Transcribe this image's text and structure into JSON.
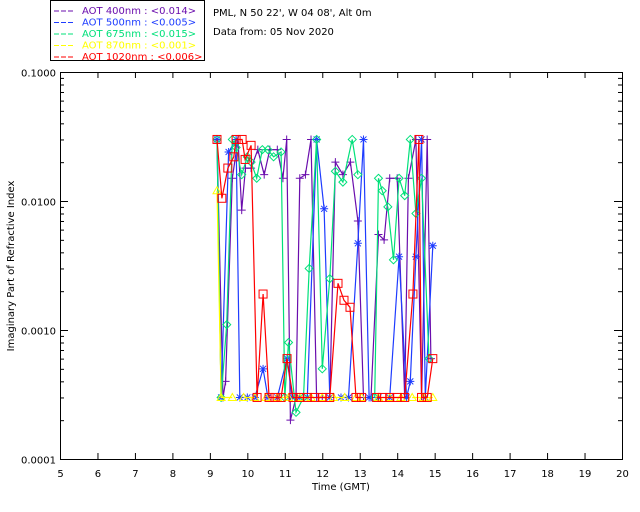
{
  "header": {
    "site": "PML, N 50 22', W 04 08', Alt 0m",
    "date": "Data from: 05 Nov 2020"
  },
  "chart_data": {
    "type": "line",
    "title": "",
    "xlabel": "Time (GMT)",
    "ylabel": "Imaginary Part of Refractive Index",
    "xlim": [
      5,
      20
    ],
    "ylim": [
      0.0001,
      0.1
    ],
    "yscale": "log",
    "xticks": [
      "5",
      "6",
      "7",
      "8",
      "9",
      "10",
      "11",
      "12",
      "13",
      "14",
      "15",
      "16",
      "17",
      "18",
      "19",
      "20"
    ],
    "yticks": [
      "0.1000",
      "0.0100",
      "0.0010",
      "0.0001"
    ],
    "legend_position": "top-left-outside",
    "series": [
      {
        "name": "AOT  400nm : <0.014>",
        "color": "#6a0dad",
        "marker": "plus",
        "points": [
          [
            9.19,
            0.03
          ],
          [
            9.35,
            0.0003
          ],
          [
            9.42,
            0.0004
          ],
          [
            9.6,
            0.015
          ],
          [
            9.75,
            0.03
          ],
          [
            9.85,
            0.0085
          ],
          [
            9.95,
            0.018
          ],
          [
            10.1,
            0.018
          ],
          [
            10.28,
            0.025
          ],
          [
            10.45,
            0.016
          ],
          [
            10.6,
            0.025
          ],
          [
            10.8,
            0.025
          ],
          [
            10.95,
            0.015
          ],
          [
            11.05,
            0.03
          ],
          [
            11.15,
            0.0002
          ],
          [
            11.3,
            0.0003
          ],
          [
            11.4,
            0.015
          ],
          [
            11.55,
            0.016
          ],
          [
            11.7,
            0.03
          ],
          [
            11.85,
            0.0003
          ],
          [
            12.0,
            0.0003
          ],
          [
            12.2,
            0.0003
          ],
          [
            12.35,
            0.02
          ],
          [
            12.55,
            0.016
          ],
          [
            12.75,
            0.02
          ],
          [
            12.95,
            0.007
          ],
          [
            13.1,
            0.0003
          ],
          [
            13.3,
            0.0003
          ],
          [
            13.5,
            0.0055
          ],
          [
            13.65,
            0.005
          ],
          [
            13.8,
            0.015
          ],
          [
            14.0,
            0.015
          ],
          [
            14.2,
            0.0003
          ],
          [
            14.3,
            0.015
          ],
          [
            14.5,
            0.03
          ],
          [
            14.65,
            0.0003
          ],
          [
            14.8,
            0.03
          ],
          [
            14.9,
            0.0006
          ]
        ]
      },
      {
        "name": "AOT  500nm : <0.005>",
        "color": "#1e3cff",
        "marker": "star",
        "points": [
          [
            9.19,
            0.03
          ],
          [
            9.3,
            0.0003
          ],
          [
            9.5,
            0.024
          ],
          [
            9.7,
            0.03
          ],
          [
            9.8,
            0.0003
          ],
          [
            10.0,
            0.0003
          ],
          [
            10.2,
            0.0003
          ],
          [
            10.42,
            0.0005
          ],
          [
            10.55,
            0.0003
          ],
          [
            10.8,
            0.0003
          ],
          [
            11.06,
            0.0006
          ],
          [
            11.2,
            0.0003
          ],
          [
            11.4,
            0.0003
          ],
          [
            11.6,
            0.0003
          ],
          [
            11.85,
            0.03
          ],
          [
            12.05,
            0.0087
          ],
          [
            12.2,
            0.0003
          ],
          [
            12.5,
            0.0003
          ],
          [
            12.7,
            0.0003
          ],
          [
            12.95,
            0.0047
          ],
          [
            13.1,
            0.03
          ],
          [
            13.25,
            0.0003
          ],
          [
            13.5,
            0.0003
          ],
          [
            13.8,
            0.0003
          ],
          [
            14.05,
            0.0037
          ],
          [
            14.25,
            0.0003
          ],
          [
            14.35,
            0.0004
          ],
          [
            14.5,
            0.0037
          ],
          [
            14.65,
            0.03
          ],
          [
            14.75,
            0.0003
          ],
          [
            14.95,
            0.0045
          ]
        ]
      },
      {
        "name": "AOT  675nm : <0.015>",
        "color": "#00e07a",
        "marker": "diamond",
        "points": [
          [
            9.19,
            0.03
          ],
          [
            9.3,
            0.0003
          ],
          [
            9.45,
            0.0011
          ],
          [
            9.6,
            0.03
          ],
          [
            9.7,
            0.026
          ],
          [
            9.85,
            0.016
          ],
          [
            10.0,
            0.022
          ],
          [
            10.1,
            0.02
          ],
          [
            10.25,
            0.015
          ],
          [
            10.4,
            0.025
          ],
          [
            10.55,
            0.025
          ],
          [
            10.7,
            0.022
          ],
          [
            10.9,
            0.024
          ],
          [
            11.0,
            0.0003
          ],
          [
            11.1,
            0.0008
          ],
          [
            11.3,
            0.00023
          ],
          [
            11.5,
            0.0003
          ],
          [
            11.65,
            0.003
          ],
          [
            11.85,
            0.03
          ],
          [
            12.0,
            0.0005
          ],
          [
            12.2,
            0.0025
          ],
          [
            12.35,
            0.017
          ],
          [
            12.55,
            0.014
          ],
          [
            12.8,
            0.03
          ],
          [
            12.95,
            0.016
          ],
          [
            13.4,
            0.0003
          ],
          [
            13.5,
            0.015
          ],
          [
            13.6,
            0.012
          ],
          [
            13.75,
            0.009
          ],
          [
            13.9,
            0.0035
          ],
          [
            14.05,
            0.015
          ],
          [
            14.2,
            0.011
          ],
          [
            14.35,
            0.03
          ],
          [
            14.5,
            0.008
          ],
          [
            14.65,
            0.015
          ],
          [
            14.85,
            0.0006
          ]
        ]
      },
      {
        "name": "AOT  870nm : <0.001>",
        "color": "#ffff00",
        "marker": "triangle",
        "points": [
          [
            9.19,
            0.012
          ],
          [
            9.3,
            0.0003
          ],
          [
            9.6,
            0.0003
          ],
          [
            9.9,
            0.0003
          ],
          [
            10.2,
            0.0003
          ],
          [
            10.5,
            0.0003
          ],
          [
            10.8,
            0.0003
          ],
          [
            11.1,
            0.0003
          ],
          [
            11.4,
            0.0003
          ],
          [
            11.7,
            0.0003
          ],
          [
            12.0,
            0.0003
          ],
          [
            12.3,
            0.0003
          ],
          [
            12.6,
            0.0003
          ],
          [
            12.9,
            0.0003
          ],
          [
            13.05,
            0.0003
          ],
          [
            13.5,
            0.0003
          ],
          [
            13.8,
            0.0003
          ],
          [
            14.1,
            0.0003
          ],
          [
            14.4,
            0.0003
          ],
          [
            14.7,
            0.0003
          ],
          [
            14.95,
            0.0003
          ]
        ]
      },
      {
        "name": "AOT 1020nm : <0.006>",
        "color": "#ff0000",
        "marker": "square",
        "points": [
          [
            9.19,
            0.03
          ],
          [
            9.32,
            0.0105
          ],
          [
            9.48,
            0.018
          ],
          [
            9.64,
            0.022
          ],
          [
            9.7,
            0.03
          ],
          [
            9.86,
            0.03
          ],
          [
            9.94,
            0.021
          ],
          [
            10.1,
            0.027
          ],
          [
            10.26,
            0.0003
          ],
          [
            10.42,
            0.0019
          ],
          [
            10.58,
            0.0003
          ],
          [
            10.74,
            0.0003
          ],
          [
            10.9,
            0.0003
          ],
          [
            11.06,
            0.0006
          ],
          [
            11.22,
            0.0003
          ],
          [
            11.4,
            0.0003
          ],
          [
            11.6,
            0.0003
          ],
          [
            11.8,
            0.0003
          ],
          [
            12.0,
            0.0003
          ],
          [
            12.2,
            0.0003
          ],
          [
            12.42,
            0.0023
          ],
          [
            12.58,
            0.0017
          ],
          [
            12.74,
            0.0015
          ],
          [
            12.9,
            0.0003
          ],
          [
            13.05,
            0.0003
          ],
          [
            13.45,
            0.0003
          ],
          [
            13.6,
            0.0003
          ],
          [
            13.8,
            0.0003
          ],
          [
            14.0,
            0.0003
          ],
          [
            14.2,
            0.0003
          ],
          [
            14.42,
            0.0019
          ],
          [
            14.58,
            0.03
          ],
          [
            14.65,
            0.0003
          ],
          [
            14.8,
            0.0003
          ],
          [
            14.95,
            0.0006
          ]
        ]
      }
    ]
  }
}
